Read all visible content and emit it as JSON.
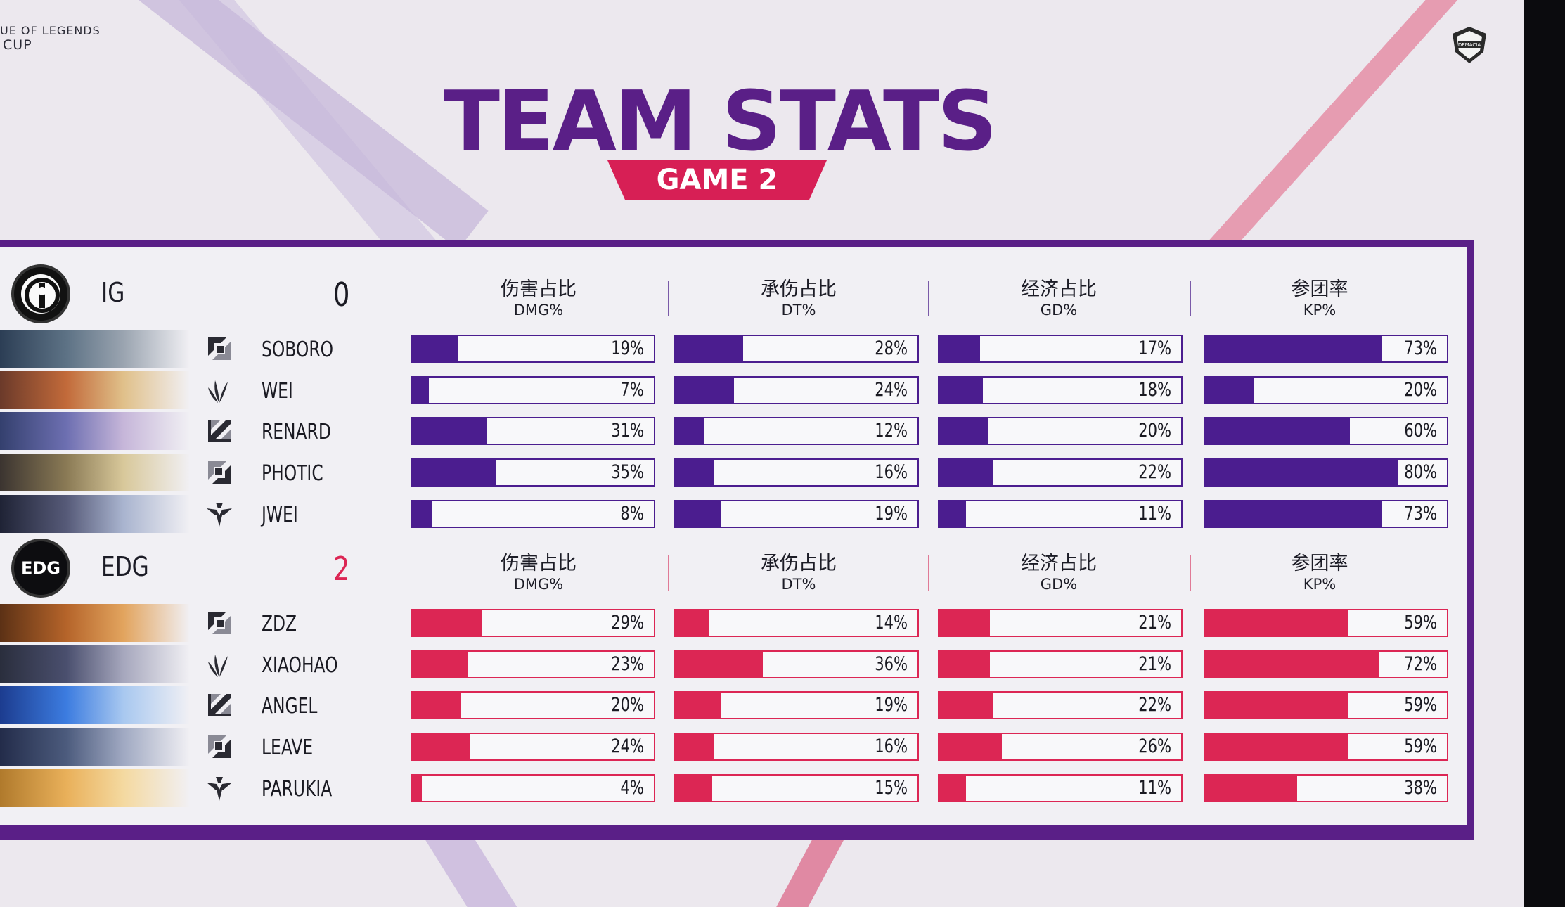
{
  "header": {
    "league_line1": "UE OF LEGENDS",
    "league_line2": "CUP",
    "title": "TEAM STATS",
    "game_label": "GAME 2",
    "badge_text": "DEMACIA"
  },
  "columns": [
    {
      "cn": "伤害占比",
      "en": "DMG%"
    },
    {
      "cn": "承伤占比",
      "en": "DT%"
    },
    {
      "cn": "经济占比",
      "en": "GD%"
    },
    {
      "cn": "参团率",
      "en": "KP%"
    }
  ],
  "colors": {
    "purple": "#4b1d8f",
    "red": "#dc2654",
    "title_purple": "#5a1f87",
    "banner_red": "#d71f55"
  },
  "chart_data": {
    "type": "bar",
    "categories": [
      "伤害占比",
      "承伤占比",
      "经济占比",
      "参团率"
    ],
    "teams": [
      {
        "name": "IG",
        "score": "0",
        "color": "#4b1d8f",
        "logo_icon": "ig-logo-icon",
        "players": [
          {
            "name": "SOBORO",
            "role_icon": "top-role-icon",
            "values": [
              19,
              28,
              17,
              73
            ],
            "labels": [
              "19%",
              "28%",
              "17%",
              "73%"
            ]
          },
          {
            "name": "WEI",
            "role_icon": "jungle-role-icon",
            "values": [
              7,
              24,
              18,
              20
            ],
            "labels": [
              "7%",
              "24%",
              "18%",
              "20%"
            ]
          },
          {
            "name": "RENARD",
            "role_icon": "mid-role-icon",
            "values": [
              31,
              12,
              20,
              60
            ],
            "labels": [
              "31%",
              "12%",
              "20%",
              "60%"
            ]
          },
          {
            "name": "PHOTIC",
            "role_icon": "bot-role-icon",
            "values": [
              35,
              16,
              22,
              80
            ],
            "labels": [
              "35%",
              "16%",
              "22%",
              "80%"
            ]
          },
          {
            "name": "JWEI",
            "role_icon": "support-role-icon",
            "values": [
              8,
              19,
              11,
              73
            ],
            "labels": [
              "8%",
              "19%",
              "11%",
              "73%"
            ]
          }
        ]
      },
      {
        "name": "EDG",
        "score": "2",
        "color": "#dc2654",
        "logo_icon": "edg-logo-icon",
        "logo_text": "EDG",
        "players": [
          {
            "name": "ZDZ",
            "role_icon": "top-role-icon",
            "values": [
              29,
              14,
              21,
              59
            ],
            "labels": [
              "29%",
              "14%",
              "21%",
              "59%"
            ]
          },
          {
            "name": "XIAOHAO",
            "role_icon": "jungle-role-icon",
            "values": [
              23,
              36,
              21,
              72
            ],
            "labels": [
              "23%",
              "36%",
              "21%",
              "72%"
            ]
          },
          {
            "name": "ANGEL",
            "role_icon": "mid-role-icon",
            "values": [
              20,
              19,
              22,
              59
            ],
            "labels": [
              "20%",
              "19%",
              "22%",
              "59%"
            ]
          },
          {
            "name": "LEAVE",
            "role_icon": "bot-role-icon",
            "values": [
              24,
              16,
              26,
              59
            ],
            "labels": [
              "24%",
              "16%",
              "26%",
              "59%"
            ]
          },
          {
            "name": "PARUKIA",
            "role_icon": "support-role-icon",
            "values": [
              4,
              15,
              11,
              38
            ],
            "labels": [
              "4%",
              "15%",
              "11%",
              "38%"
            ]
          }
        ]
      }
    ]
  }
}
